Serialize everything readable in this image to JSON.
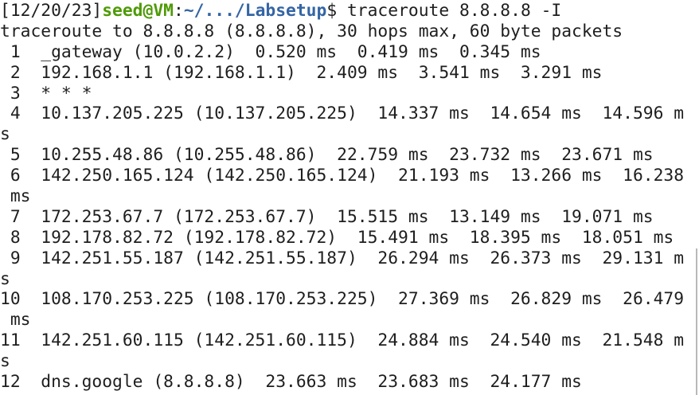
{
  "terminal": {
    "prompt": {
      "date": "[12/20/23]",
      "user": "seed@VM",
      "sep": ":",
      "path": "~/.../Labsetup",
      "command": "$ traceroute 8.8.8.8 -I"
    },
    "lines": [
      "traceroute to 8.8.8.8 (8.8.8.8), 30 hops max, 60 byte packets",
      " 1  _gateway (10.0.2.2)  0.520 ms  0.419 ms  0.345 ms",
      " 2  192.168.1.1 (192.168.1.1)  2.409 ms  3.541 ms  3.291 ms",
      " 3  * * *",
      " 4  10.137.205.225 (10.137.205.225)  14.337 ms  14.654 ms  14.596 m",
      "s",
      " 5  10.255.48.86 (10.255.48.86)  22.759 ms  23.732 ms  23.671 ms",
      " 6  142.250.165.124 (142.250.165.124)  21.193 ms  13.266 ms  16.238",
      " ms",
      " 7  172.253.67.7 (172.253.67.7)  15.515 ms  13.149 ms  19.071 ms",
      " 8  192.178.82.72 (192.178.82.72)  15.491 ms  18.395 ms  18.051 ms",
      " 9  142.251.55.187 (142.251.55.187)  26.294 ms  26.373 ms  29.131 m",
      "s",
      "10  108.170.253.225 (108.170.253.225)  27.369 ms  26.829 ms  26.479",
      " ms",
      "11  142.251.60.115 (142.251.60.115)  24.884 ms  24.540 ms  21.548 m",
      "s",
      "12  dns.google (8.8.8.8)  23.663 ms  23.683 ms  24.177 ms"
    ]
  }
}
